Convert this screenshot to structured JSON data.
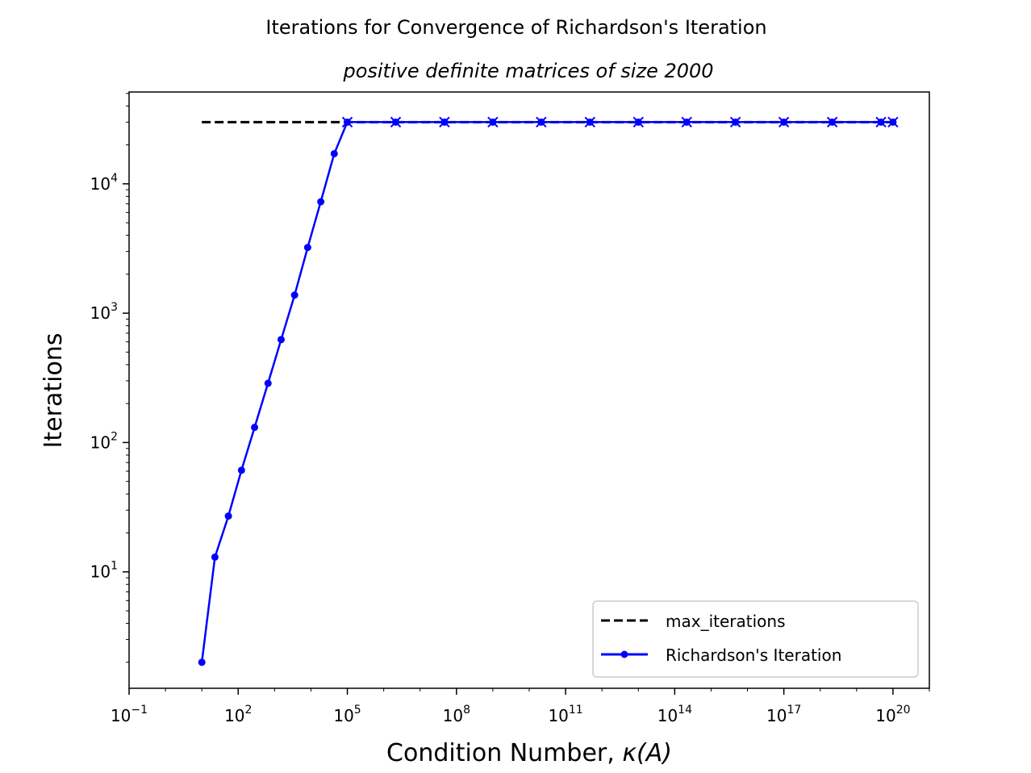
{
  "chart_data": {
    "type": "line",
    "title": "Iterations for Convergence of Richardson's Iteration",
    "subtitle": "positive definite matrices of size 2000",
    "xlabel": "Condition Number, ",
    "xlabel_symbol": "κ(A)",
    "ylabel": "Iterations",
    "xscale": "log",
    "yscale": "log",
    "xlim_exp": [
      -1,
      21.0
    ],
    "ylim_exp": [
      0.1,
      4.71
    ],
    "grid": false,
    "legend_position": "lower-right",
    "x_ticks": [
      {
        "base": "10",
        "exp": "−1",
        "value_exp": -1
      },
      {
        "base": "10",
        "exp": "2",
        "value_exp": 2
      },
      {
        "base": "10",
        "exp": "5",
        "value_exp": 5
      },
      {
        "base": "10",
        "exp": "8",
        "value_exp": 8
      },
      {
        "base": "10",
        "exp": "11",
        "value_exp": 11
      },
      {
        "base": "10",
        "exp": "14",
        "value_exp": 14
      },
      {
        "base": "10",
        "exp": "17",
        "value_exp": 17
      },
      {
        "base": "10",
        "exp": "20",
        "value_exp": 20
      }
    ],
    "y_ticks": [
      {
        "base": "10",
        "exp": "1",
        "value_exp": 1
      },
      {
        "base": "10",
        "exp": "2",
        "value_exp": 2
      },
      {
        "base": "10",
        "exp": "3",
        "value_exp": 3
      },
      {
        "base": "10",
        "exp": "4",
        "value_exp": 4
      }
    ],
    "series": [
      {
        "name": "max_iterations",
        "style": "dashed",
        "color": "#000000",
        "x_exp": [
          1,
          20
        ],
        "y": [
          30000,
          30000
        ]
      },
      {
        "name": "Richardson's Iteration",
        "style": "solid-dot",
        "color": "#0000ff",
        "x_exp": [
          1,
          1.36,
          1.73,
          2.09,
          2.45,
          2.82,
          3.18,
          3.55,
          3.91,
          4.27,
          4.64,
          5.0,
          6.33,
          7.67,
          9.0,
          10.33,
          11.67,
          13.0,
          14.33,
          15.67,
          17.0,
          18.33,
          19.67,
          20.0
        ],
        "y": [
          2,
          13,
          27,
          61,
          131,
          287,
          625,
          1380,
          3220,
          7270,
          17100,
          30000,
          30000,
          30000,
          30000,
          30000,
          30000,
          30000,
          30000,
          30000,
          30000,
          30000,
          30000,
          30000
        ],
        "x_marker_start_index": 11
      }
    ]
  }
}
